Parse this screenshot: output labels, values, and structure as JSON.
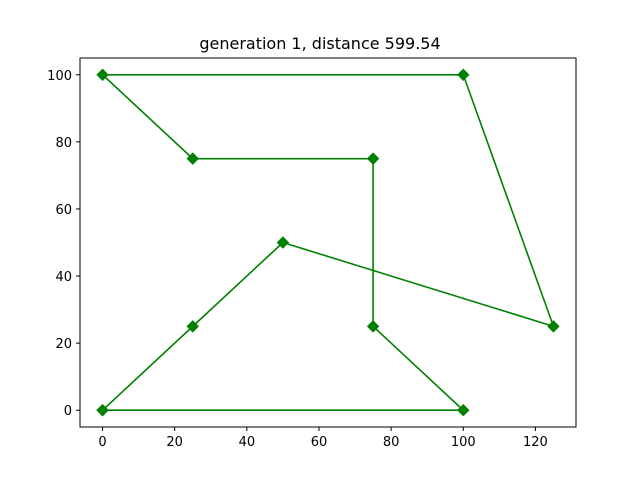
{
  "chart_data": {
    "type": "line",
    "title": "generation 1, distance 599.54",
    "xlabel": "",
    "ylabel": "",
    "xlim": [
      -6.25,
      131.25
    ],
    "ylim": [
      -5,
      105
    ],
    "xticks": [
      0,
      20,
      40,
      60,
      80,
      100,
      120
    ],
    "yticks": [
      0,
      20,
      40,
      60,
      80,
      100
    ],
    "grid": false,
    "series": [
      {
        "color": "#008000",
        "marker": "diamond",
        "points": [
          [
            0,
            0
          ],
          [
            25,
            25
          ],
          [
            50,
            50
          ],
          [
            125,
            25
          ],
          [
            100,
            100
          ],
          [
            0,
            100
          ],
          [
            25,
            75
          ],
          [
            75,
            75
          ],
          [
            75,
            25
          ],
          [
            100,
            0
          ],
          [
            0,
            0
          ]
        ]
      }
    ]
  }
}
